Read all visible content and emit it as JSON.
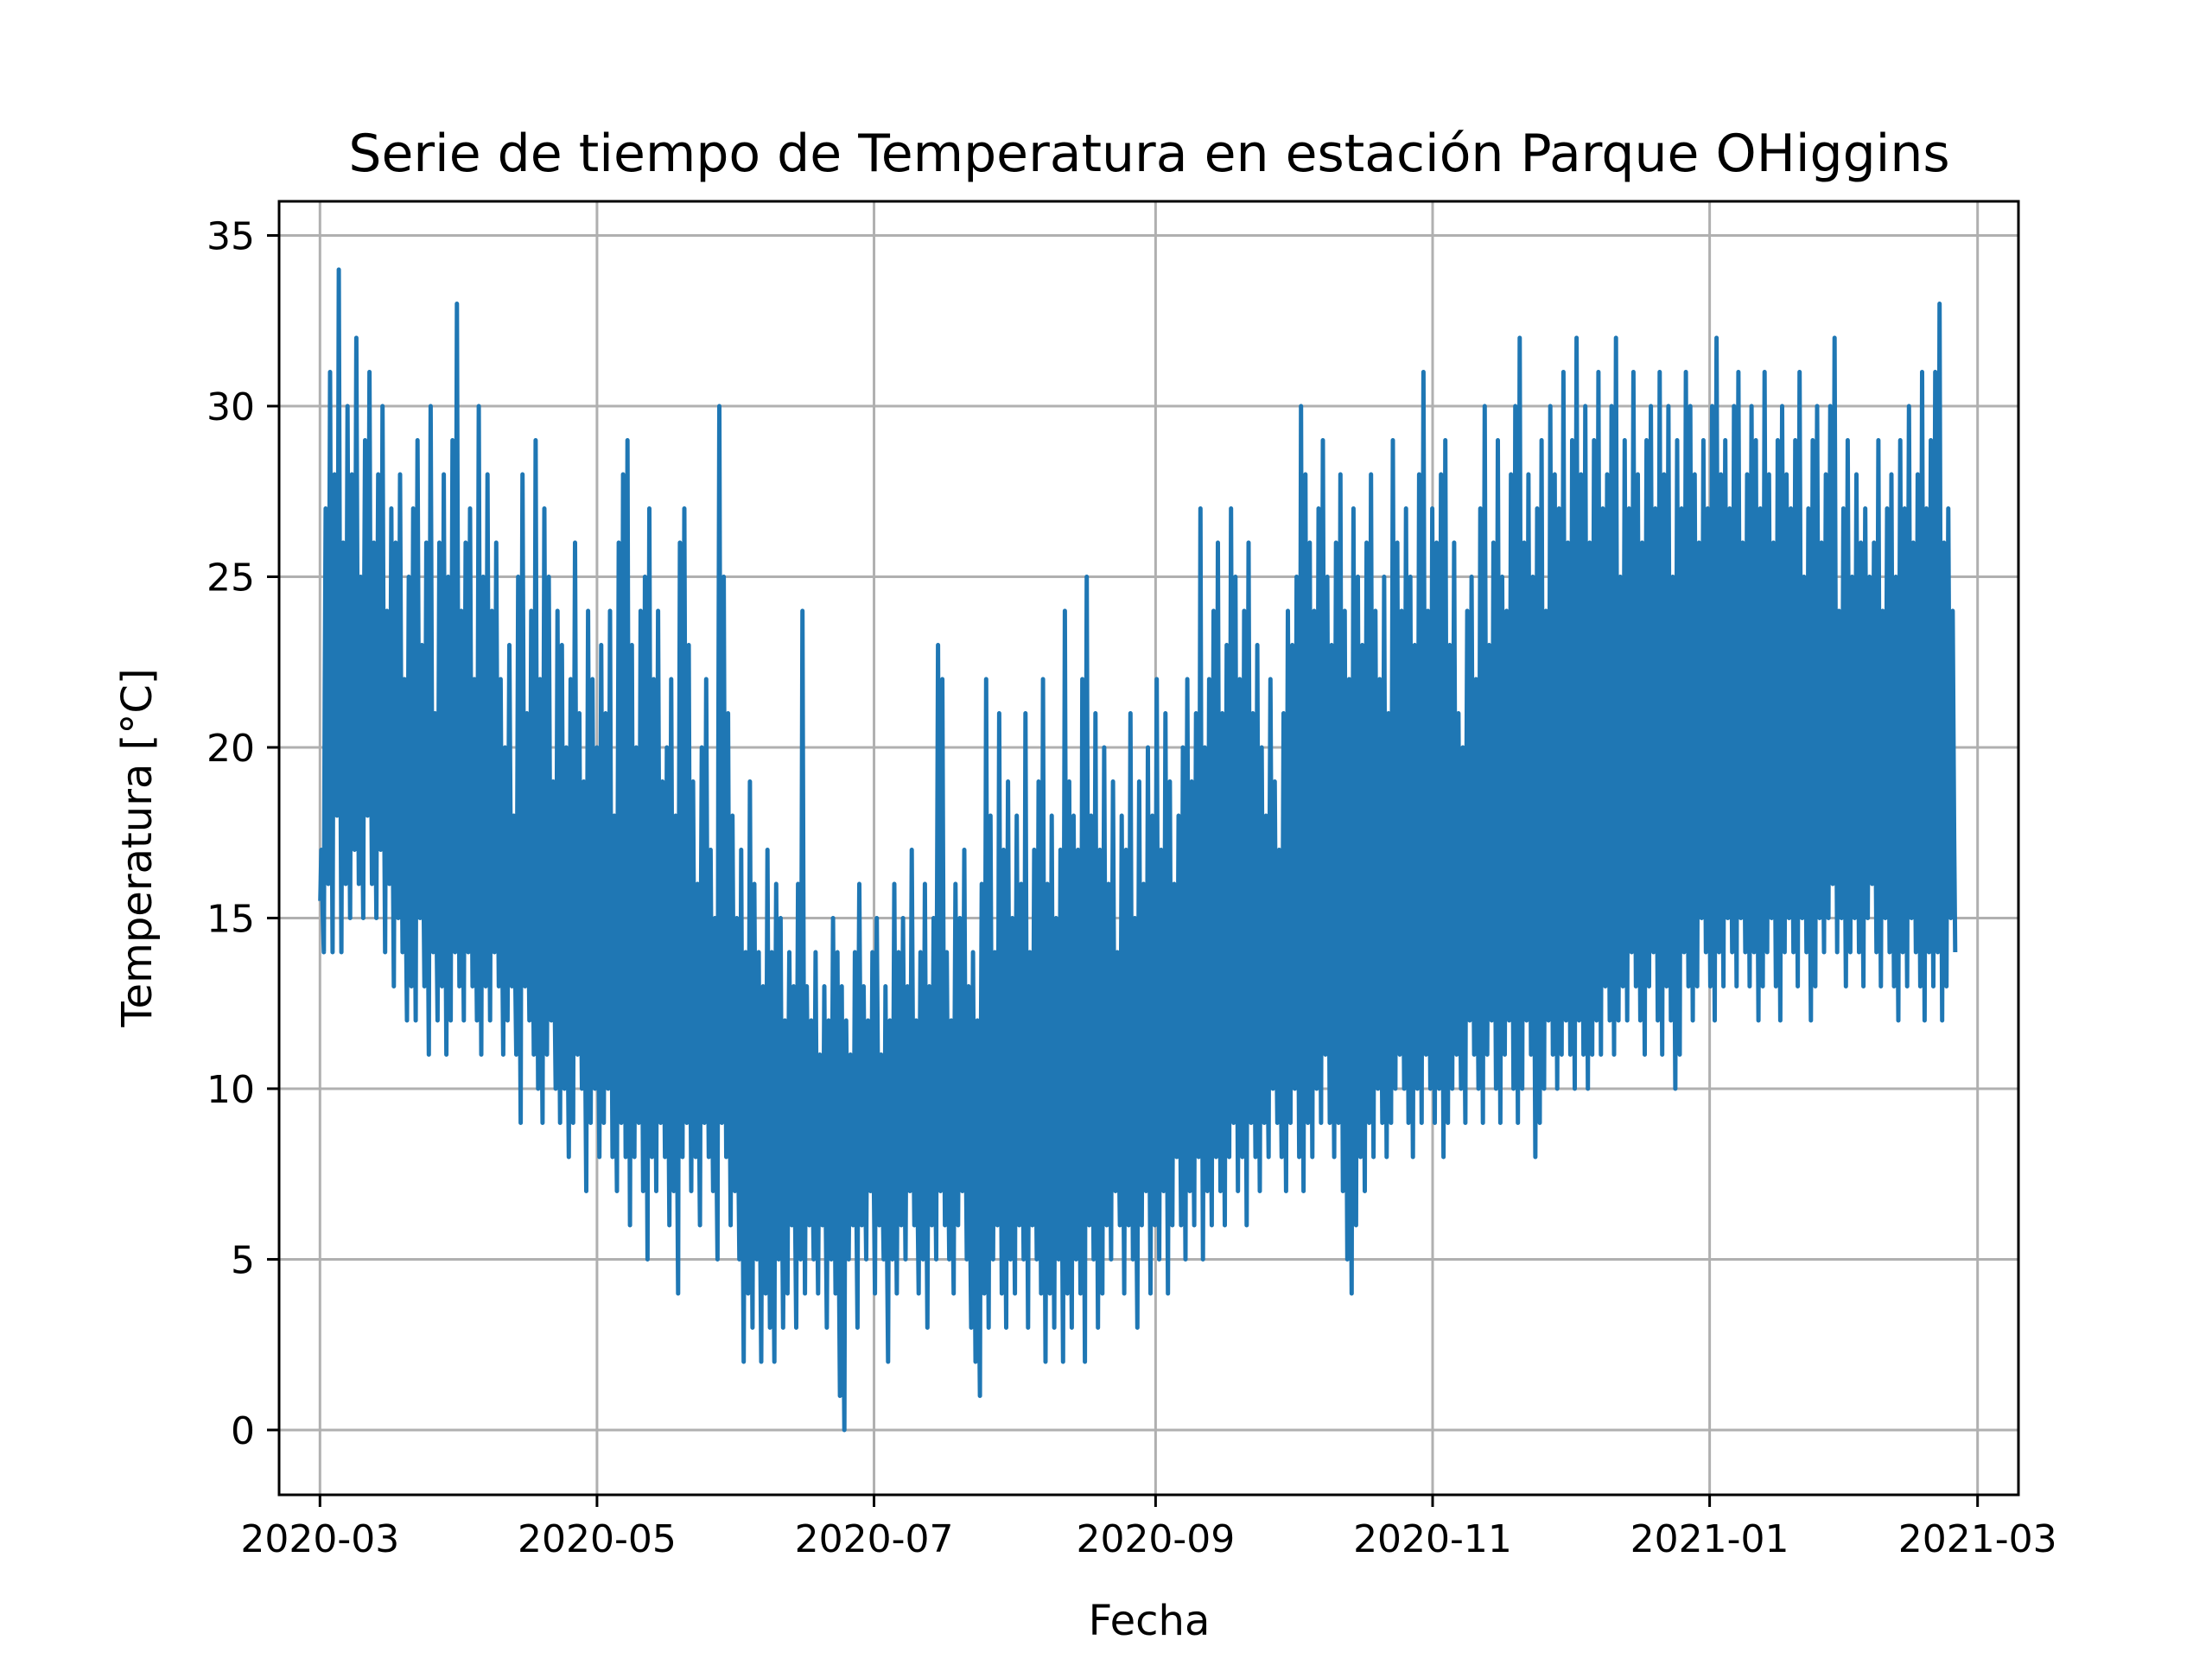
{
  "chart_data": {
    "type": "line",
    "title": "Serie de tiempo de Temperatura en estación Parque OHiggins",
    "xlabel": "Fecha",
    "ylabel": "Temperatura [°C]",
    "x_type": "date",
    "xlim": [
      "2020-02-21",
      "2021-03-10"
    ],
    "ylim": [
      -1.9,
      36
    ],
    "x_ticks": [
      "2020-03-01",
      "2020-05-01",
      "2020-07-01",
      "2020-09-01",
      "2020-11-01",
      "2021-01-01",
      "2021-03-01"
    ],
    "x_tick_labels": [
      "2020-03",
      "2020-05",
      "2020-07",
      "2020-09",
      "2020-11",
      "2021-01",
      "2021-03"
    ],
    "y_ticks": [
      0,
      5,
      10,
      15,
      20,
      25,
      30,
      35
    ],
    "y_tick_labels": [
      "0",
      "5",
      "10",
      "15",
      "20",
      "25",
      "30",
      "35"
    ],
    "grid": true,
    "color": "#1f77b4",
    "series": [
      {
        "name": "",
        "sampling": "daily minimum and maximum, estimated from the plot",
        "x_start": "2020-03-01",
        "x_end": "2021-03-01",
        "daily_min": [
          14,
          16,
          14,
          18,
          14,
          16,
          15,
          17,
          16,
          15,
          18,
          16,
          15,
          17,
          14,
          16,
          13,
          15,
          14,
          12,
          13,
          12,
          15,
          13,
          11,
          14,
          12,
          13,
          11,
          12,
          14,
          13,
          12,
          14,
          13,
          12,
          11,
          13,
          12,
          14,
          13,
          11,
          12,
          13,
          11,
          9,
          13,
          12,
          11,
          10,
          9,
          11,
          12,
          10,
          9,
          10,
          8,
          9,
          11,
          10,
          7,
          9,
          10,
          8,
          9,
          10,
          8,
          7,
          9,
          8,
          6,
          8,
          9,
          7,
          5,
          8,
          7,
          9,
          8,
          6,
          7,
          4,
          8,
          9,
          7,
          8,
          6,
          9,
          8,
          7,
          5,
          9,
          8,
          6,
          7,
          5,
          2,
          4,
          3,
          5,
          2,
          4,
          3,
          2,
          5,
          3,
          4,
          6,
          3,
          5,
          4,
          6,
          5,
          4,
          6,
          3,
          5,
          4,
          1,
          0,
          5,
          6,
          3,
          6,
          5,
          7,
          4,
          6,
          5,
          2,
          5,
          4,
          6,
          5,
          7,
          6,
          4,
          5,
          3,
          6,
          5,
          7,
          6,
          5,
          4,
          6,
          7,
          5,
          3,
          2,
          1,
          4,
          3,
          5,
          6,
          4,
          3,
          5,
          4,
          6,
          5,
          3,
          6,
          5,
          4,
          2,
          4,
          3,
          5,
          2,
          4,
          3,
          5,
          4,
          2,
          6,
          5,
          3,
          4,
          6,
          5,
          7,
          6,
          4,
          6,
          5,
          3,
          6,
          7,
          4,
          6,
          5,
          7,
          4,
          6,
          8,
          6,
          5,
          7,
          6,
          8,
          5,
          7,
          6,
          8,
          7,
          6,
          8,
          9,
          7,
          8,
          6,
          9,
          8,
          7,
          9,
          8,
          10,
          9,
          8,
          7,
          9,
          10,
          8,
          7,
          9,
          8,
          10,
          9,
          11,
          9,
          8,
          9,
          7,
          5,
          4,
          6,
          8,
          7,
          9,
          8,
          10,
          9,
          8,
          9,
          10,
          11,
          10,
          9,
          8,
          10,
          9,
          11,
          10,
          9,
          10,
          8,
          9,
          10,
          11,
          10,
          9,
          12,
          11,
          10,
          9,
          11,
          12,
          10,
          9,
          11,
          12,
          10,
          9,
          10,
          12,
          11,
          8,
          9,
          10,
          12,
          11,
          10,
          11,
          12,
          11,
          10,
          12,
          11,
          10,
          11,
          12,
          11,
          13,
          12,
          11,
          12,
          13,
          12,
          14,
          13,
          12,
          11,
          13,
          14,
          12,
          11,
          13,
          12,
          10,
          11,
          14,
          13,
          12,
          13,
          15,
          14,
          13,
          12,
          14,
          13,
          15,
          14,
          13,
          15,
          14,
          13,
          14,
          12,
          13,
          14,
          15,
          13,
          12,
          14,
          15,
          14,
          13,
          15,
          14,
          12,
          13,
          15,
          14,
          15,
          16,
          14,
          15,
          13,
          14,
          15,
          14,
          13,
          15,
          16,
          14,
          13,
          15,
          14,
          13,
          12,
          14,
          13,
          15,
          14,
          13,
          12,
          14,
          13,
          14,
          12,
          13,
          15,
          14,
          13,
          12,
          14,
          15,
          13,
          14
        ],
        "daily_max": [
          17,
          27,
          31,
          28,
          34,
          26,
          30,
          28,
          32,
          25,
          29,
          31,
          26,
          28,
          30,
          24,
          27,
          26,
          28,
          22,
          25,
          27,
          29,
          23,
          26,
          30,
          21,
          26,
          28,
          25,
          29,
          33,
          24,
          26,
          27,
          22,
          30,
          25,
          28,
          24,
          26,
          22,
          20,
          23,
          18,
          25,
          28,
          21,
          24,
          29,
          22,
          27,
          25,
          19,
          24,
          23,
          20,
          22,
          26,
          21,
          19,
          24,
          22,
          20,
          23,
          21,
          24,
          18,
          26,
          28,
          29,
          23,
          20,
          24,
          25,
          27,
          22,
          24,
          19,
          20,
          22,
          18,
          26,
          27,
          23,
          19,
          16,
          20,
          22,
          17,
          15,
          30,
          25,
          21,
          18,
          15,
          17,
          14,
          19,
          16,
          14,
          13,
          17,
          14,
          16,
          15,
          12,
          14,
          13,
          16,
          24,
          13,
          12,
          14,
          11,
          13,
          12,
          15,
          14,
          13,
          12,
          11,
          14,
          16,
          13,
          12,
          14,
          15,
          11,
          13,
          12,
          16,
          14,
          15,
          13,
          17,
          12,
          14,
          16,
          13,
          15,
          23,
          22,
          14,
          12,
          16,
          15,
          17,
          13,
          14,
          12,
          16,
          22,
          18,
          14,
          21,
          17,
          19,
          15,
          18,
          16,
          21,
          14,
          17,
          19,
          22,
          16,
          18,
          15,
          17,
          24,
          19,
          18,
          17,
          22,
          25,
          18,
          21,
          17,
          20,
          16,
          19,
          14,
          18,
          17,
          21,
          15,
          19,
          16,
          20,
          18,
          22,
          17,
          21,
          19,
          16,
          18,
          20,
          22,
          19,
          21,
          27,
          20,
          22,
          24,
          26,
          21,
          23,
          27,
          25,
          22,
          24,
          26,
          21,
          23,
          20,
          18,
          22,
          19,
          17,
          21,
          24,
          23,
          25,
          30,
          28,
          26,
          24,
          27,
          29,
          25,
          23,
          26,
          28,
          24,
          22,
          27,
          25,
          23,
          26,
          28,
          24,
          22,
          25,
          21,
          29,
          26,
          24,
          27,
          25,
          23,
          28,
          31,
          24,
          27,
          26,
          28,
          29,
          23,
          26,
          21,
          20,
          24,
          25,
          22,
          27,
          30,
          23,
          26,
          29,
          25,
          24,
          28,
          30,
          32,
          26,
          28,
          25,
          27,
          29,
          24,
          30,
          28,
          27,
          31,
          26,
          29,
          32,
          28,
          30,
          26,
          29,
          31,
          27,
          28,
          30,
          32,
          25,
          29,
          27,
          31,
          28,
          26,
          29,
          30,
          27,
          31,
          28,
          30,
          25,
          29,
          27,
          31,
          30,
          28,
          26,
          29,
          27,
          30,
          32,
          28,
          29,
          27,
          30,
          31,
          26,
          28,
          30,
          29,
          27,
          31,
          28,
          26,
          29,
          30,
          28,
          27,
          29,
          31,
          25,
          27,
          29,
          30,
          26,
          28,
          30,
          32,
          24,
          27,
          29,
          25,
          28,
          26,
          27,
          25,
          26,
          29,
          24,
          27,
          28,
          25,
          29,
          27,
          30,
          26,
          28,
          31,
          27,
          29,
          31,
          33,
          26,
          27,
          24
        ]
      }
    ]
  }
}
